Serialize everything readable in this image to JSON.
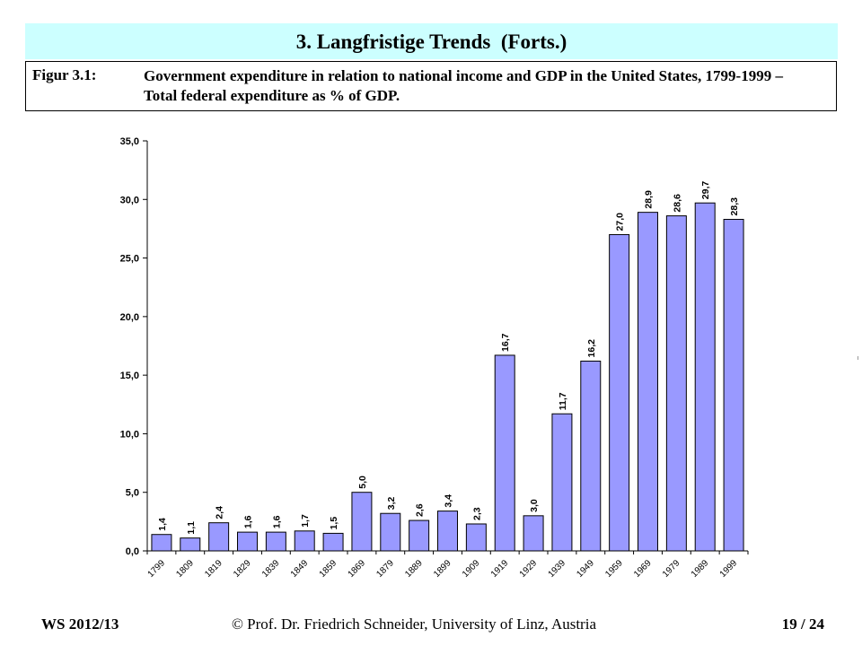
{
  "slide": {
    "title": "3. Langfristige Trends  (Forts.)",
    "caption_label": "Figur 3.1:",
    "caption_text": "Government expenditure in relation to national income and GDP in the United States, 1799-1999 – Total federal expenditure as % of GDP."
  },
  "footer": {
    "left": "WS 2012/13",
    "center": "© Prof. Dr. Friedrich Schneider, University of Linz, Austria",
    "right": "19 / 24"
  },
  "colors": {
    "title_bg": "#ccffff",
    "bar_fill": "#9999ff",
    "bar_stroke": "#000000"
  },
  "chart_data": {
    "type": "bar",
    "title": "",
    "xlabel": "",
    "ylabel": "",
    "ylim": [
      0,
      35
    ],
    "yticks": [
      0,
      5,
      10,
      15,
      20,
      25,
      30,
      35
    ],
    "ytick_labels": [
      "0,0",
      "5,0",
      "10,0",
      "15,0",
      "20,0",
      "25,0",
      "30,0",
      "35,0"
    ],
    "grid": false,
    "categories": [
      "1799",
      "1809",
      "1819",
      "1829",
      "1839",
      "1849",
      "1859",
      "1869",
      "1879",
      "1889",
      "1899",
      "1909",
      "1919",
      "1929",
      "1939",
      "1949",
      "1959",
      "1969",
      "1979",
      "1989",
      "1999"
    ],
    "values": [
      1.4,
      1.1,
      2.4,
      1.6,
      1.6,
      1.7,
      1.5,
      5.0,
      3.2,
      2.6,
      3.4,
      2.3,
      16.7,
      3.0,
      11.7,
      16.2,
      27.0,
      28.9,
      28.6,
      29.7,
      28.3
    ],
    "value_labels": [
      "1,4",
      "1,1",
      "2,4",
      "1,6",
      "1,6",
      "1,7",
      "1,5",
      "5,0",
      "3,2",
      "2,6",
      "3,4",
      "2,3",
      "16,7",
      "3,0",
      "11,7",
      "16,2",
      "27,0",
      "28,9",
      "28,6",
      "29,7",
      "28,3"
    ]
  }
}
